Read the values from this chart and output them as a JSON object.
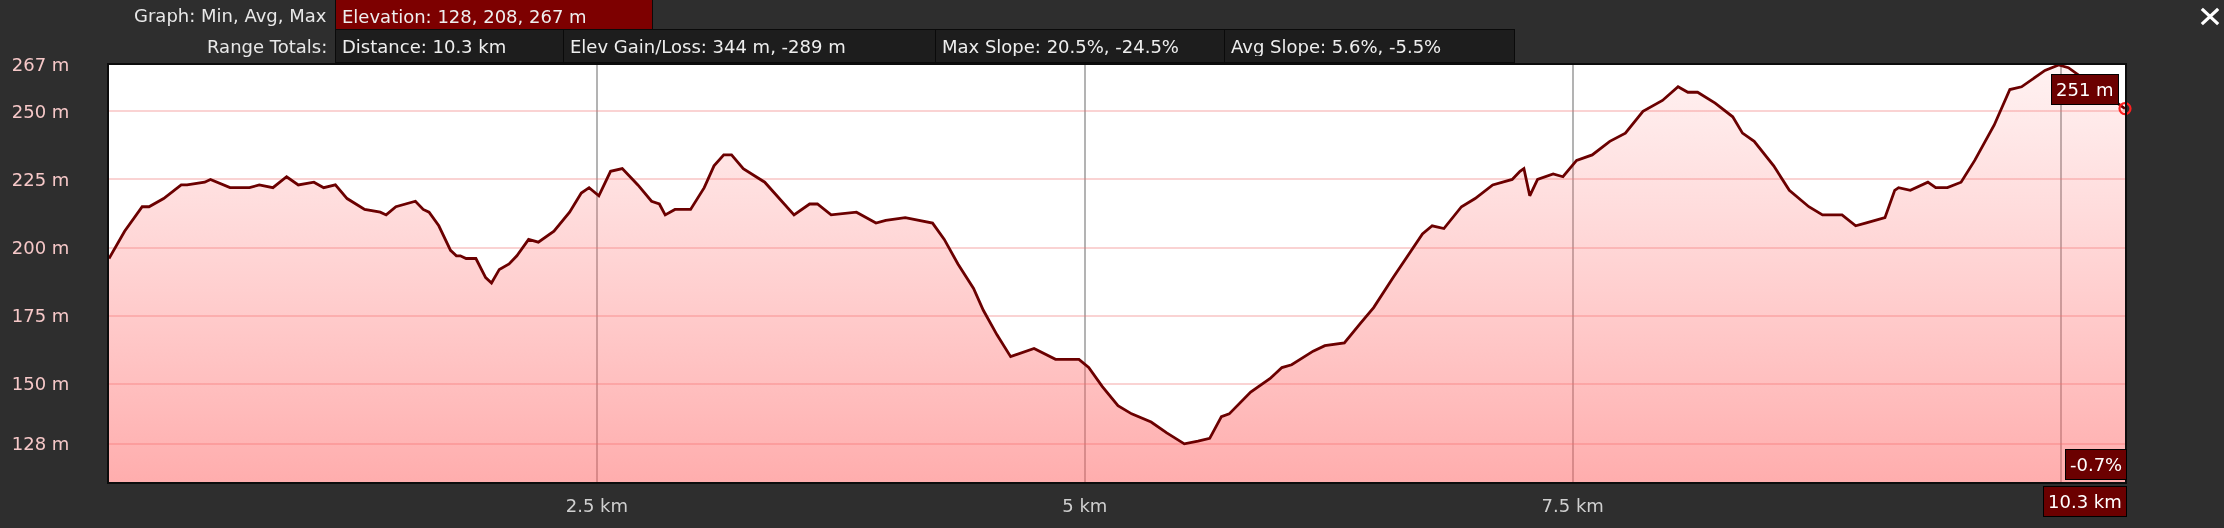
{
  "chart_data": {
    "type": "area",
    "annotations": [
      "Graph: Min, Avg, Max",
      "Elevation: 128, 208, 267 m",
      "Range Totals:",
      "Distance: 10.3 km",
      "Elev Gain/Loss: 344 m, -289 m",
      "Max Slope: 20.5%, -24.5%",
      "Avg Slope: 5.6%, -5.5%",
      {
        "text": "251 m",
        "x": 10.3,
        "y": 251
      },
      "-0.7%",
      "10.3 km"
    ],
    "xlim": [
      0,
      10.33
    ],
    "xticks": [
      {
        "value": 2.5,
        "label": "2.5 km"
      },
      {
        "value": 5,
        "label": "5 km"
      },
      {
        "value": 7.5,
        "label": "7.5 km"
      },
      {
        "value": 10,
        "label": null
      }
    ],
    "ylim": [
      114,
      267
    ],
    "yticks": [
      {
        "value": 128,
        "label": "128 m"
      },
      {
        "value": 150,
        "label": "150 m"
      },
      {
        "value": 175,
        "label": "175 m"
      },
      {
        "value": 200,
        "label": "200 m"
      },
      {
        "value": 225,
        "label": "225 m"
      },
      {
        "value": 250,
        "label": "250 m"
      },
      {
        "value": 267,
        "label": "267 m"
      }
    ],
    "grid": true,
    "series": [
      {
        "color": "#6b0000",
        "x": [
          0,
          0.08,
          0.17,
          0.205,
          0.28,
          0.37,
          0.4,
          0.49,
          0.52,
          0.62,
          0.72,
          0.77,
          0.84,
          0.91,
          0.97,
          1.05,
          1.1,
          1.16,
          1.22,
          1.31,
          1.39,
          1.42,
          1.47,
          1.57,
          1.61,
          1.64,
          1.69,
          1.75,
          1.78,
          1.8,
          1.83,
          1.88,
          1.93,
          1.96,
          2.0,
          2.05,
          2.09,
          2.15,
          2.2,
          2.28,
          2.36,
          2.42,
          2.46,
          2.51,
          2.57,
          2.63,
          2.71,
          2.78,
          2.82,
          2.85,
          2.9,
          2.98,
          3.05,
          3.1,
          3.15,
          3.19,
          3.25,
          3.36,
          3.51,
          3.59,
          3.63,
          3.7,
          3.83,
          3.93,
          3.98,
          4.08,
          4.22,
          4.28,
          4.35,
          4.43,
          4.48,
          4.55,
          4.62,
          4.74,
          4.85,
          4.97,
          5.02,
          5.09,
          5.17,
          5.24,
          5.34,
          5.42,
          5.51,
          5.58,
          5.64,
          5.7,
          5.74,
          5.85,
          5.95,
          6.01,
          6.06,
          6.17,
          6.23,
          6.33,
          6.41,
          6.48,
          6.58,
          6.73,
          6.78,
          6.84,
          6.93,
          7.0,
          7.09,
          7.19,
          7.23,
          7.25,
          7.28,
          7.32,
          7.4,
          7.45,
          7.52,
          7.6,
          7.69,
          7.77,
          7.86,
          7.96,
          8.04,
          8.09,
          8.14,
          8.23,
          8.32,
          8.37,
          8.43,
          8.53,
          8.61,
          8.71,
          8.78,
          8.88,
          8.95,
          9.0,
          9.1,
          9.15,
          9.17,
          9.23,
          9.32,
          9.36,
          9.42,
          9.49,
          9.56,
          9.66,
          9.74,
          9.8,
          9.92,
          9.99,
          10.04,
          10.33
        ],
        "values": [
          196,
          206,
          215,
          215,
          218,
          223,
          223,
          224,
          225,
          222,
          222,
          223,
          222,
          226,
          223,
          224,
          222,
          223,
          218,
          214,
          213,
          212,
          215,
          217,
          214,
          213,
          208,
          199,
          197,
          197,
          196,
          196,
          189,
          187,
          192,
          194,
          197,
          203,
          202,
          206,
          213,
          220,
          222,
          219,
          228,
          229,
          223,
          217,
          216,
          212,
          214,
          214,
          222,
          230,
          234,
          234,
          229,
          224,
          212,
          216,
          216,
          212,
          213,
          209,
          210,
          211,
          209,
          203,
          194,
          185,
          177,
          168,
          160,
          163,
          159,
          159,
          156,
          149,
          142,
          139,
          136,
          132,
          128,
          129,
          130,
          138,
          139,
          147,
          152,
          156,
          157,
          162,
          164,
          165,
          172,
          178,
          189,
          205,
          208,
          207,
          215,
          218,
          223,
          225,
          228,
          229,
          219,
          225,
          227,
          226,
          232,
          234,
          239,
          242,
          250,
          254,
          259,
          257,
          257,
          253,
          248,
          242,
          239,
          230,
          221,
          215,
          212,
          212,
          208,
          209,
          211,
          221,
          222,
          221,
          224,
          222,
          222,
          224,
          232,
          245,
          258,
          259,
          265,
          267,
          266,
          251
        ]
      },
      {
        "type": "scatter",
        "color": "#ff2020",
        "x": [
          10.33
        ],
        "values": [
          251
        ]
      }
    ]
  }
}
